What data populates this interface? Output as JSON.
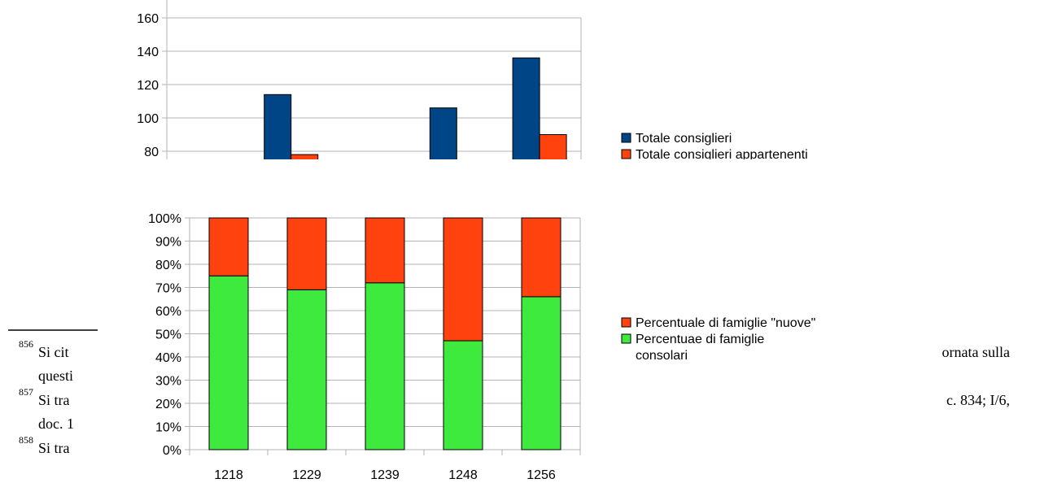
{
  "footnotes": [
    {
      "num": "856",
      "left": "Si cit",
      "right": "ornata sulla"
    },
    {
      "num": "",
      "left": "questi",
      "right": ""
    },
    {
      "num": "857",
      "left": "Si tra",
      "right": "c. 834; I/6,"
    },
    {
      "num": "",
      "left": "doc. 1",
      "right": ""
    },
    {
      "num": "858",
      "left": "Si tra",
      "right": ""
    }
  ],
  "chart_data": [
    {
      "type": "bar",
      "categories": [
        "1218",
        "1229",
        "1239",
        "1248",
        "1256"
      ],
      "series": [
        {
          "name": "Totale consiglieri",
          "color": "#004586",
          "values": [
            null,
            114,
            null,
            106,
            136
          ]
        },
        {
          "name": "Totale consiglieri appartenenti",
          "color": "#ff420e",
          "values": [
            null,
            78,
            null,
            null,
            90
          ]
        }
      ],
      "yticks": [
        "160",
        "140",
        "120",
        "100",
        "80"
      ],
      "ylim": [
        75,
        160
      ],
      "grid": true,
      "legend": "right"
    },
    {
      "type": "bar",
      "stacked": true,
      "categories": [
        "1218",
        "1229",
        "1239",
        "1248",
        "1256"
      ],
      "series": [
        {
          "name": "Percentuae di famiglie consolari",
          "legend_lines": [
            "Percentuae di famiglie",
            "consolari"
          ],
          "color": "#3eea3e",
          "values": [
            75,
            69,
            72,
            47,
            66
          ]
        },
        {
          "name": "Percentuale di famiglie \"nuove\"",
          "legend_lines": [
            "Percentuale di famiglie \"nuove\""
          ],
          "color": "#ff420e",
          "values": [
            25,
            31,
            28,
            53,
            34
          ]
        }
      ],
      "yticks": [
        "100%",
        "90%",
        "80%",
        "70%",
        "60%",
        "50%",
        "40%",
        "30%",
        "20%",
        "10%",
        "0%"
      ],
      "ylim": [
        0,
        100
      ],
      "grid": true,
      "legend": "right"
    }
  ]
}
